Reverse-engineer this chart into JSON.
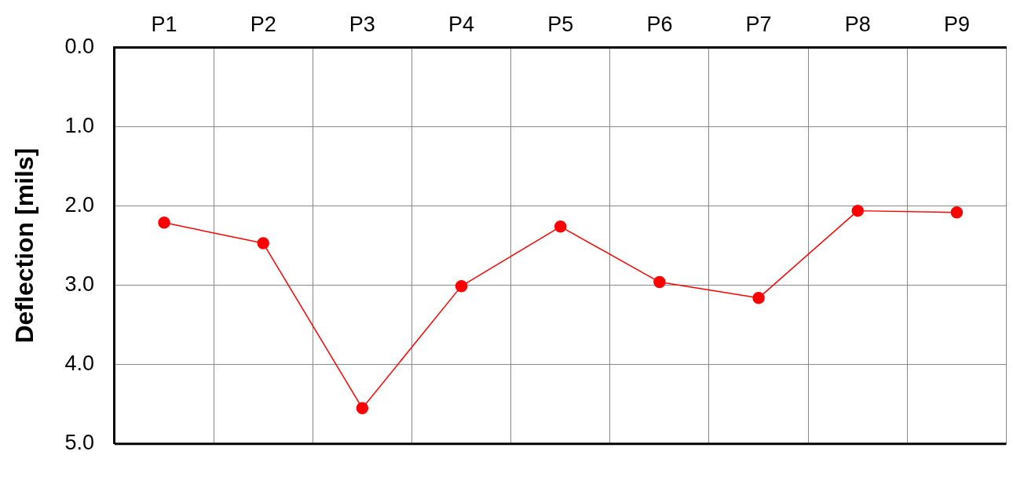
{
  "chart_data": {
    "type": "line",
    "categories": [
      "P1",
      "P2",
      "P3",
      "P4",
      "P5",
      "P6",
      "P7",
      "P8",
      "P9"
    ],
    "series": [
      {
        "color": "#ff0000",
        "values": [
          2.21,
          2.47,
          4.55,
          3.01,
          2.26,
          2.96,
          3.16,
          2.06,
          2.08
        ]
      }
    ],
    "ylabel": "Deflection [mils]",
    "ylim": [
      5,
      0
    ],
    "yticks": [
      {
        "value": 0,
        "label": "0.0"
      },
      {
        "value": 1,
        "label": "1.0"
      },
      {
        "value": 2,
        "label": "2.0"
      },
      {
        "value": 3,
        "label": "3.0"
      },
      {
        "value": 4,
        "label": "4.0"
      },
      {
        "value": 5,
        "label": "5.0"
      }
    ],
    "grid": true,
    "legend": false,
    "marker": "circle",
    "line_style": "solid"
  }
}
